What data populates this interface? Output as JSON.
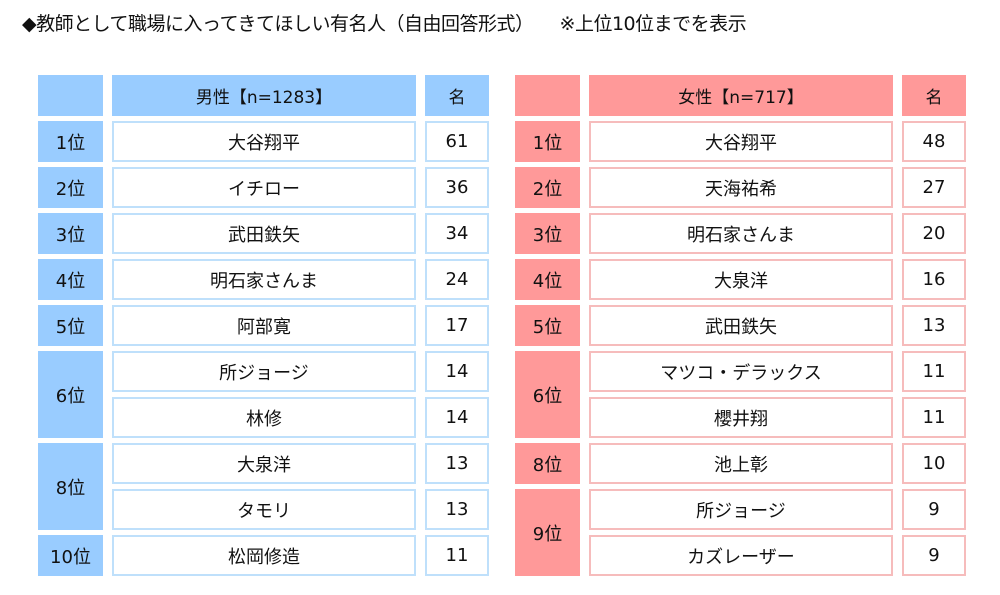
{
  "title": "◆教師として職場に入ってきてほしい有名人（自由回答形式）",
  "note": "※上位10位までを表示",
  "colors": {
    "male": "#99CCFF",
    "female": "#FF9999"
  },
  "tables": [
    {
      "key": "male",
      "header": "男性【n=1283】",
      "count_header": "名",
      "groups": [
        {
          "rank": "1位",
          "entries": [
            {
              "name": "大谷翔平",
              "count": "61"
            }
          ]
        },
        {
          "rank": "2位",
          "entries": [
            {
              "name": "イチロー",
              "count": "36"
            }
          ]
        },
        {
          "rank": "3位",
          "entries": [
            {
              "name": "武田鉄矢",
              "count": "34"
            }
          ]
        },
        {
          "rank": "4位",
          "entries": [
            {
              "name": "明石家さんま",
              "count": "24"
            }
          ]
        },
        {
          "rank": "5位",
          "entries": [
            {
              "name": "阿部寛",
              "count": "17"
            }
          ]
        },
        {
          "rank": "6位",
          "entries": [
            {
              "name": "所ジョージ",
              "count": "14"
            },
            {
              "name": "林修",
              "count": "14"
            }
          ]
        },
        {
          "rank": "8位",
          "entries": [
            {
              "name": "大泉洋",
              "count": "13"
            },
            {
              "name": "タモリ",
              "count": "13"
            }
          ]
        },
        {
          "rank": "10位",
          "entries": [
            {
              "name": "松岡修造",
              "count": "11"
            }
          ]
        }
      ]
    },
    {
      "key": "female",
      "header": "女性【n=717】",
      "count_header": "名",
      "groups": [
        {
          "rank": "1位",
          "entries": [
            {
              "name": "大谷翔平",
              "count": "48"
            }
          ]
        },
        {
          "rank": "2位",
          "entries": [
            {
              "name": "天海祐希",
              "count": "27"
            }
          ]
        },
        {
          "rank": "3位",
          "entries": [
            {
              "name": "明石家さんま",
              "count": "20"
            }
          ]
        },
        {
          "rank": "4位",
          "entries": [
            {
              "name": "大泉洋",
              "count": "16"
            }
          ]
        },
        {
          "rank": "5位",
          "entries": [
            {
              "name": "武田鉄矢",
              "count": "13"
            }
          ]
        },
        {
          "rank": "6位",
          "entries": [
            {
              "name": "マツコ・デラックス",
              "count": "11"
            },
            {
              "name": "櫻井翔",
              "count": "11"
            }
          ]
        },
        {
          "rank": "8位",
          "entries": [
            {
              "name": "池上彰",
              "count": "10"
            }
          ]
        },
        {
          "rank": "9位",
          "entries": [
            {
              "name": "所ジョージ",
              "count": "9"
            },
            {
              "name": "カズレーザー",
              "count": "9"
            }
          ]
        }
      ]
    }
  ]
}
